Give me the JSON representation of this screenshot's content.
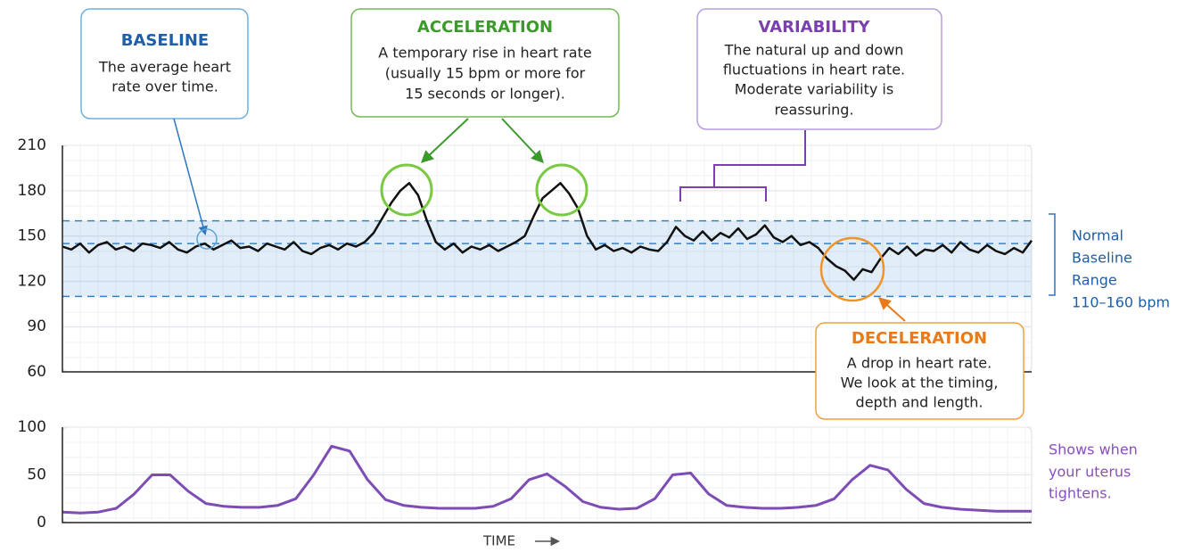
{
  "chart_data": [
    {
      "type": "line",
      "color": "#111111",
      "ylim": [
        60,
        210
      ],
      "yticks": [
        60,
        90,
        120,
        150,
        180,
        210
      ],
      "grid": true,
      "band": [
        110,
        160
      ],
      "baseline": 145,
      "values": [
        143,
        141,
        145,
        139,
        144,
        146,
        141,
        143,
        140,
        145,
        144,
        142,
        146,
        141,
        139,
        143,
        145,
        141,
        144,
        147,
        142,
        143,
        140,
        145,
        143,
        141,
        146,
        140,
        138,
        142,
        144,
        141,
        145,
        143,
        146,
        152,
        162,
        172,
        180,
        185,
        177,
        160,
        146,
        141,
        145,
        139,
        143,
        141,
        144,
        140,
        143,
        146,
        150,
        163,
        175,
        180,
        185,
        178,
        168,
        150,
        141,
        144,
        140,
        142,
        139,
        143,
        141,
        140,
        146,
        156,
        150,
        147,
        153,
        147,
        152,
        149,
        155,
        148,
        151,
        157,
        149,
        146,
        150,
        144,
        146,
        142,
        135,
        130,
        127,
        121,
        128,
        126,
        135,
        142,
        138,
        143,
        137,
        141,
        140,
        144,
        139,
        146,
        141,
        139,
        144,
        140,
        138,
        142,
        139,
        147
      ],
      "annotations": [
        {
          "title": "BASELINE",
          "lines": [
            "The average heart",
            "rate over time."
          ]
        },
        {
          "title": "ACCELERATION",
          "lines": [
            "A temporary rise in heart rate",
            "(usually 15 bpm or more for",
            "15 seconds or longer)."
          ]
        },
        {
          "title": "VARIABILITY",
          "lines": [
            "The natural up and down",
            "fluctuations in heart rate.",
            "Moderate variability is",
            "reassuring."
          ]
        },
        {
          "title": "DECELERATION",
          "lines": [
            "A drop in heart rate.",
            "We look at the timing,",
            "depth and length."
          ]
        }
      ],
      "range_label": [
        "Normal",
        "Baseline",
        "Range",
        "110–160 bpm"
      ]
    },
    {
      "type": "line",
      "color": "#7d4cb5",
      "ylim": [
        0,
        100
      ],
      "yticks": [
        0,
        50,
        100
      ],
      "grid": true,
      "values": [
        11,
        10,
        11,
        15,
        30,
        50,
        50,
        33,
        20,
        17,
        16,
        16,
        18,
        25,
        50,
        80,
        75,
        45,
        24,
        18,
        16,
        15,
        15,
        15,
        17,
        25,
        45,
        51,
        38,
        22,
        16,
        14,
        15,
        25,
        50,
        52,
        30,
        18,
        16,
        15,
        15,
        16,
        18,
        25,
        45,
        60,
        55,
        35,
        20,
        16,
        14,
        13,
        12,
        12,
        12
      ],
      "side_label": [
        "Shows when",
        "your uterus",
        "tightens."
      ],
      "x_label": "TIME"
    }
  ]
}
